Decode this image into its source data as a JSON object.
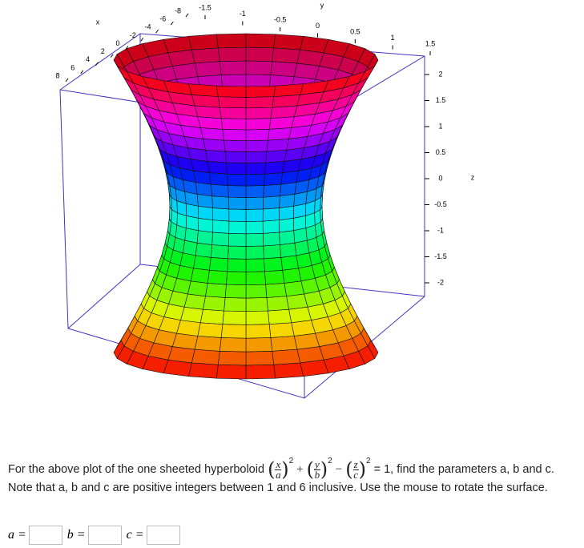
{
  "plot": {
    "x_axis": {
      "label": "x",
      "ticks": [
        8,
        6,
        4,
        2,
        0,
        -2,
        -4,
        -6,
        -8
      ]
    },
    "y_axis": {
      "label": "y",
      "ticks": [
        -1.5,
        -1,
        -0.5,
        0,
        0.5,
        1,
        1.5
      ]
    },
    "z_axis": {
      "label": "z",
      "ticks": [
        2,
        1.5,
        1,
        0.5,
        0,
        -0.5,
        -1,
        -1.5,
        -2
      ]
    }
  },
  "question": {
    "before": "For the above plot of the one sheeted hyperboloid",
    "formula": {
      "open": "(",
      "close": ")",
      "terms": [
        {
          "num": "x",
          "den": "a",
          "power": "2"
        },
        {
          "op": "+",
          "num": "y",
          "den": "b",
          "power": "2"
        },
        {
          "op": "−",
          "num": "z",
          "den": "c",
          "power": "2"
        }
      ]
    },
    "after": "= 1, find the parameters a, b and c. Note that a, b and c are positive integers between 1 and 6 inclusive. Use the mouse to rotate the surface."
  },
  "inputs": [
    {
      "label": "a ="
    },
    {
      "label": "b ="
    },
    {
      "label": "c ="
    }
  ]
}
